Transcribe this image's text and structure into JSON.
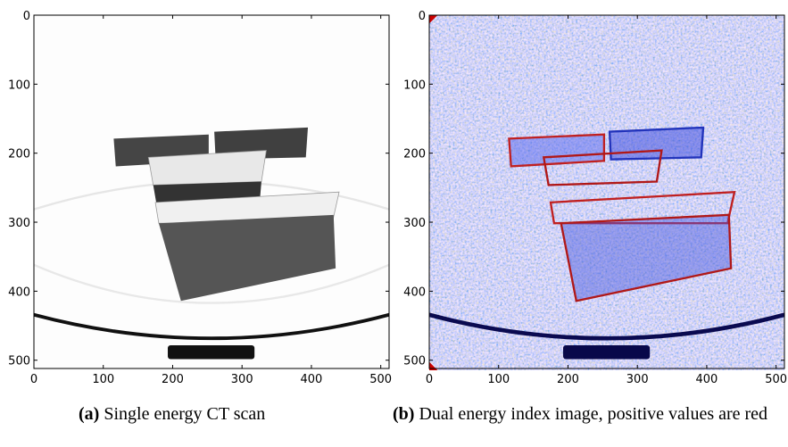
{
  "panels": [
    {
      "caption": {
        "label": "(a)",
        "text": "Single energy CT scan"
      },
      "xlim": [
        0,
        512
      ],
      "ylim": [
        512,
        0
      ],
      "xticks": [
        0,
        100,
        200,
        300,
        400,
        500
      ],
      "yticks": [
        0,
        100,
        200,
        300,
        400,
        500
      ]
    },
    {
      "caption": {
        "label": "(b)",
        "text": "Dual energy index image, positive values are red"
      },
      "xlim": [
        0,
        512
      ],
      "ylim": [
        512,
        0
      ],
      "xticks": [
        0,
        100,
        200,
        300,
        400,
        500
      ],
      "yticks": [
        0,
        100,
        200,
        300,
        400,
        500
      ]
    }
  ]
}
